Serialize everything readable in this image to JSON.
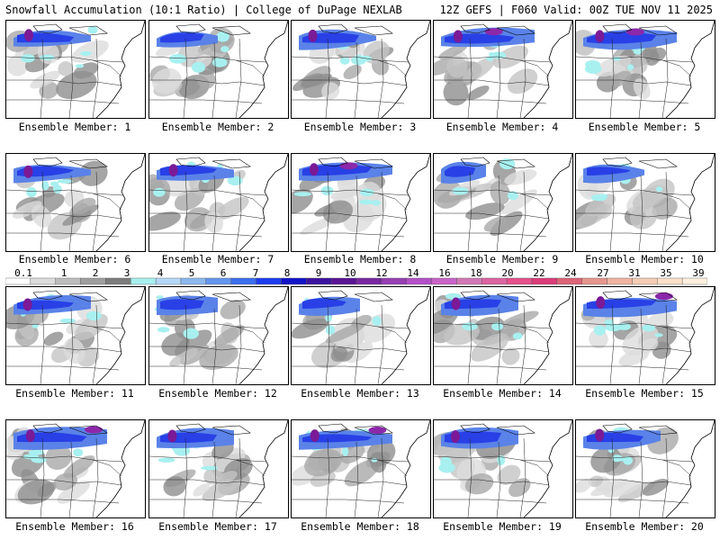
{
  "header": {
    "left_title": "Snowfall Accumulation (10:1 Ratio) | College of DuPage NEXLAB",
    "right_title": "12Z GEFS | F060 Valid: 00Z TUE NOV 11 2025"
  },
  "caption_prefix": "Ensemble Member:",
  "members": [
    {
      "label": "Ensemble Member: 1",
      "intensity": 3
    },
    {
      "label": "Ensemble Member: 2",
      "intensity": 2
    },
    {
      "label": "Ensemble Member: 3",
      "intensity": 3
    },
    {
      "label": "Ensemble Member: 4",
      "intensity": 4
    },
    {
      "label": "Ensemble Member: 5",
      "intensity": 4
    },
    {
      "label": "Ensemble Member: 6",
      "intensity": 3
    },
    {
      "label": "Ensemble Member: 7",
      "intensity": 3
    },
    {
      "label": "Ensemble Member: 8",
      "intensity": 4
    },
    {
      "label": "Ensemble Member: 9",
      "intensity": 1
    },
    {
      "label": "Ensemble Member: 10",
      "intensity": 2
    },
    {
      "label": "Ensemble Member: 11",
      "intensity": 3
    },
    {
      "label": "Ensemble Member: 12",
      "intensity": 2
    },
    {
      "label": "Ensemble Member: 13",
      "intensity": 2
    },
    {
      "label": "Ensemble Member: 14",
      "intensity": 3
    },
    {
      "label": "Ensemble Member: 15",
      "intensity": 4
    },
    {
      "label": "Ensemble Member: 16",
      "intensity": 4
    },
    {
      "label": "Ensemble Member: 17",
      "intensity": 3
    },
    {
      "label": "Ensemble Member: 18",
      "intensity": 4
    },
    {
      "label": "Ensemble Member: 19",
      "intensity": 3
    },
    {
      "label": "Ensemble Member: 20",
      "intensity": 3
    }
  ],
  "color_scale": {
    "labels": [
      "0.1",
      "1",
      "2",
      "3",
      "4",
      "5",
      "6",
      "7",
      "8",
      "9",
      "10",
      "12",
      "14",
      "16",
      "18",
      "20",
      "22",
      "24",
      "27",
      "31",
      "35",
      "39"
    ],
    "colors": [
      "#ffffff",
      "#dcdcdc",
      "#bdbdbd",
      "#9e9e9e",
      "#7d7d7d",
      "#a8f0f0",
      "#b4d8f8",
      "#8cb8f0",
      "#6496f0",
      "#3c6ef0",
      "#1e3cf0",
      "#1414c8",
      "#3c14a0",
      "#5a1496",
      "#7828a0",
      "#9640b4",
      "#b450c8",
      "#c864c8",
      "#d278b4",
      "#dc64a0",
      "#e6508c",
      "#dc3c78",
      "#dc6478",
      "#e6968c",
      "#f0b4a0",
      "#f5ccb4",
      "#fae1c8",
      "#fff0e1"
    ]
  }
}
